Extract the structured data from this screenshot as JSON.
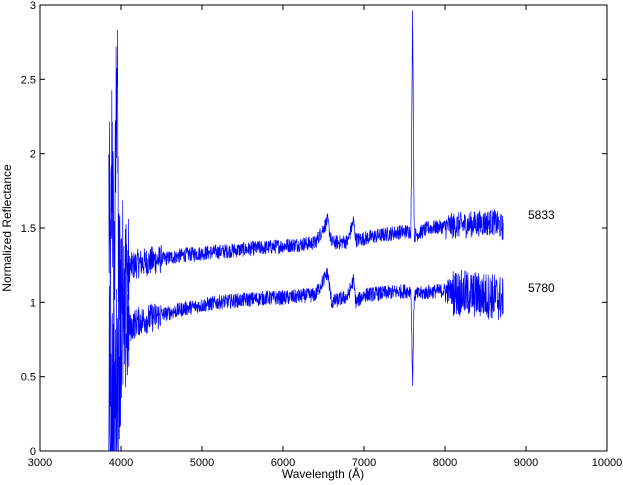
{
  "chart_data": {
    "type": "line",
    "title": "",
    "xlabel": "Wavelength (Å)",
    "ylabel": "Normalized Reflectance",
    "xlim": [
      3000,
      10000
    ],
    "ylim": [
      0,
      3
    ],
    "xticks": [
      3000,
      4000,
      5000,
      6000,
      7000,
      8000,
      9000,
      10000
    ],
    "yticks": [
      0,
      0.5,
      1,
      1.5,
      2,
      2.5,
      3
    ],
    "ytick_labels": [
      "0",
      "0.5",
      "1",
      "1.5",
      "2",
      "2.5",
      "3"
    ],
    "grid": false,
    "legend": "none",
    "line_color": "#0000ff",
    "series": [
      {
        "label": "5833",
        "x": [
          3850,
          3870,
          3890,
          3910,
          3930,
          3950,
          3970,
          4000,
          4100,
          4200,
          4400,
          4600,
          4800,
          5000,
          5200,
          5400,
          5600,
          5800,
          6000,
          6200,
          6400,
          6550,
          6600,
          6800,
          6870,
          6900,
          7000,
          7200,
          7400,
          7580,
          7600,
          7620,
          7800,
          8000,
          8200,
          8400,
          8600,
          8720
        ],
        "y": [
          1.7,
          0.8,
          2.2,
          1.0,
          1.6,
          2.9,
          1.1,
          1.2,
          1.23,
          1.26,
          1.28,
          1.3,
          1.32,
          1.33,
          1.34,
          1.35,
          1.36,
          1.37,
          1.38,
          1.39,
          1.4,
          1.55,
          1.4,
          1.41,
          1.55,
          1.42,
          1.43,
          1.45,
          1.47,
          1.48,
          3.0,
          1.45,
          1.5,
          1.51,
          1.52,
          1.53,
          1.54,
          1.5
        ]
      },
      {
        "label": "5780",
        "x": [
          3850,
          3870,
          3890,
          3910,
          3930,
          3950,
          3970,
          4000,
          4100,
          4200,
          4400,
          4600,
          4800,
          5000,
          5200,
          5400,
          5600,
          5800,
          6000,
          6200,
          6400,
          6550,
          6600,
          6800,
          6870,
          6900,
          7000,
          7200,
          7400,
          7580,
          7600,
          7620,
          7800,
          8000,
          8200,
          8400,
          8600,
          8720
        ],
        "y": [
          0.3,
          0.1,
          0.4,
          0.2,
          0.3,
          0.5,
          0.7,
          0.75,
          0.82,
          0.87,
          0.9,
          0.93,
          0.96,
          0.98,
          1.0,
          1.01,
          1.02,
          1.03,
          1.03,
          1.04,
          1.05,
          1.2,
          1.0,
          1.04,
          1.15,
          1.0,
          1.05,
          1.06,
          1.07,
          1.08,
          0.45,
          1.05,
          1.07,
          1.08,
          1.06,
          1.05,
          1.04,
          1.02
        ]
      }
    ]
  }
}
